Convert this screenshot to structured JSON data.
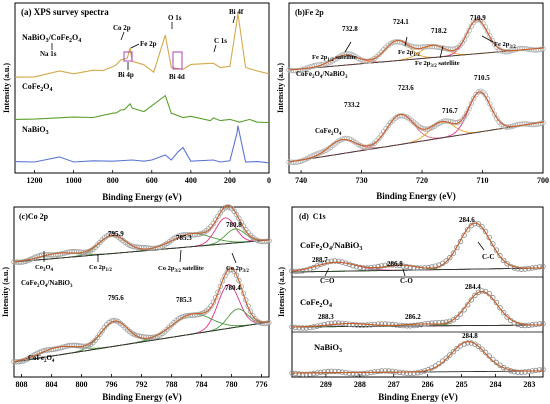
{
  "chart_data": [
    {
      "panel": "a",
      "type": "line",
      "title": "(a) XPS survey spectra",
      "xlabel": "Binding Energy (eV)",
      "ylabel": "Intensity (a.u.)",
      "xlim": [
        1300,
        0
      ],
      "x_reversed": true,
      "xticks": [
        1200,
        1000,
        800,
        600,
        400,
        200,
        0
      ],
      "series": [
        {
          "name": "NaBiO3/CoFe2O4",
          "color": "#d4a94a",
          "x": [
            1300,
            1200,
            1072,
            1000,
            900,
            850,
            795,
            780,
            760,
            725,
            711,
            700,
            640,
            590,
            531,
            500,
            440,
            400,
            285,
            250,
            200,
            164,
            159,
            120,
            60,
            0
          ],
          "y": [
            59,
            60,
            63,
            62,
            63.5,
            64,
            66,
            68,
            70,
            72,
            78,
            70,
            67,
            63,
            86,
            66,
            64,
            68,
            68,
            66,
            66,
            96,
            100,
            66,
            63,
            62
          ]
        },
        {
          "name": "CoFe2O4",
          "color": "#5aa02c",
          "x": [
            1300,
            1200,
            1000,
            900,
            800,
            780,
            760,
            740,
            711,
            700,
            640,
            531,
            500,
            440,
            400,
            300,
            285,
            250,
            200,
            150,
            100,
            60,
            0
          ],
          "y": [
            32,
            33,
            33.5,
            34,
            36,
            37,
            38,
            39,
            42,
            40,
            37,
            48,
            36,
            34,
            34,
            32,
            33,
            32,
            32,
            31,
            32,
            31,
            30
          ]
        },
        {
          "name": "NaBiO3",
          "color": "#5b76d4",
          "x": [
            1300,
            1200,
            1072,
            1000,
            900,
            800,
            700,
            640,
            600,
            531,
            500,
            466,
            440,
            400,
            285,
            250,
            200,
            164,
            159,
            120,
            60,
            0
          ],
          "y": [
            5,
            5.5,
            8,
            5.5,
            5.5,
            6,
            6,
            6,
            6,
            10,
            6,
            12,
            14,
            6,
            6,
            5.5,
            5.5,
            24,
            28,
            5.5,
            5,
            5
          ]
        }
      ],
      "annotations": [
        "Na 1s",
        "Co 2p",
        "Fe 2p",
        "O 1s",
        "Bi 4f",
        "C 1s",
        "Bi 4p",
        "Bi 4d"
      ],
      "ylim": [
        0,
        105
      ]
    },
    {
      "panel": "b",
      "type": "line",
      "title": "(b)Fe 2p",
      "xlabel": "Binding Energy (eV)",
      "ylabel": "Intensity (a.u.)",
      "xlim": [
        742,
        700
      ],
      "x_reversed": true,
      "xticks": [
        740,
        730,
        720,
        710,
        700
      ],
      "samples": [
        {
          "name": "CoFe2O4/NaBiO3",
          "peaks": [
            732.8,
            724.1,
            718.2,
            710.9
          ],
          "peak_labels": [
            "732.8",
            "724.1",
            "718.2",
            "710.9"
          ],
          "annotations": [
            "Fe 2p1/2 satellite",
            "Fe 2p1/2",
            "Fe 2p3/2 satellite",
            "Fe 2p3/2"
          ]
        },
        {
          "name": "CoFe2O4",
          "peaks": [
            733.2,
            723.6,
            716.7,
            710.5
          ],
          "peak_labels": [
            "733.2",
            "723.6",
            "716.7",
            "710.5"
          ]
        }
      ],
      "colors": {
        "data": "#b0b0b0",
        "envelope": "#c8602a",
        "peak1": "#e0338a",
        "peak2": "#f0a020",
        "peak3": "#e07080",
        "background": "#404040"
      }
    },
    {
      "panel": "c",
      "type": "line",
      "title": "(c)Co 2p",
      "xlabel": "Binding Energy (eV)",
      "ylabel": "Intensity (a.u.)",
      "xlim": [
        809,
        775
      ],
      "x_reversed": true,
      "xticks": [
        808,
        804,
        800,
        796,
        792,
        788,
        784,
        780,
        776
      ],
      "samples": [
        {
          "name": "CoFe2O4/NaBiO3",
          "peaks": [
            795.9,
            785.3,
            780.8
          ],
          "peak_labels": [
            "795.9",
            "785.3",
            "780.8"
          ],
          "annotations": [
            "Co3O4",
            "Co 2p1/2",
            "Co 2p3/2 satellite",
            "Co 2p3/2"
          ]
        },
        {
          "name": "CoFe2O4",
          "peaks": [
            795.6,
            785.3,
            780.4
          ],
          "peak_labels": [
            "795.6",
            "785.3",
            "780.4"
          ]
        }
      ],
      "colors": {
        "data": "#a0a0a0",
        "envelope": "#c8602a",
        "peak1": "#e0338a",
        "peak2": "#4a9a3a",
        "background": "#303030"
      }
    },
    {
      "panel": "d",
      "type": "line",
      "title": "(d)  C1s",
      "xlabel": "Binding Energy (eV)",
      "ylabel": "Intensity (a.u.)",
      "xlim": [
        290,
        282.6
      ],
      "x_reversed": true,
      "xticks": [
        289,
        288,
        287,
        286,
        285,
        284,
        283
      ],
      "samples": [
        {
          "name": "CoFe2O4/NaBiO3",
          "peaks": [
            288.7,
            286.8,
            284.6
          ],
          "peak_labels": [
            "288.7",
            "286.8",
            "284.6"
          ],
          "annotations": [
            "C=O",
            "C-O",
            "C-C"
          ]
        },
        {
          "name": "CoFe2O4",
          "peaks": [
            288.3,
            286.2,
            284.4
          ],
          "peak_labels": [
            "288.3",
            "286.2",
            "284.4"
          ]
        },
        {
          "name": "NaBiO3",
          "peaks": [
            284.8
          ],
          "peak_labels": [
            "284.8"
          ]
        }
      ],
      "colors": {
        "data": "#888888",
        "envelope": "#c8602a",
        "peak1": "#e0338a",
        "peak2": "#4a9a3a",
        "background": "#303030"
      }
    }
  ],
  "labels": {
    "a": {
      "title": "(a) XPS survey spectra",
      "na1s": "Na 1s",
      "co2p": "Co 2p",
      "fe2p": "Fe 2p",
      "o1s": "O 1s",
      "bi4f": "Bi 4f",
      "c1s": "C 1s",
      "bi4p": "Bi 4p",
      "bi4d": "Bi 4d",
      "ticks": [
        "1200",
        "1000",
        "800",
        "600",
        "400",
        "200",
        "0"
      ],
      "ylabel": "Intensity (a.u.)",
      "xlabel": "Binding Energy (eV)"
    },
    "b": {
      "title": "(b)Fe 2p",
      "p1": "732.8",
      "p2": "724.1",
      "p3": "718.2",
      "p4": "710.9",
      "q1": "733.2",
      "q2": "723.6",
      "q3": "716.7",
      "q4": "710.5",
      "ticks": [
        "740",
        "730",
        "720",
        "710",
        "700"
      ],
      "ylabel": "Intensity (a.u.)",
      "xlabel": "Binding Energy (eV)"
    },
    "c": {
      "title": "(c)Co 2p",
      "p1": "795.9",
      "p2": "785.3",
      "p3": "780.8",
      "q1": "795.6",
      "q2": "785.3",
      "q3": "780.4",
      "ticks": [
        "808",
        "804",
        "800",
        "796",
        "792",
        "788",
        "784",
        "780",
        "776"
      ],
      "ylabel": "Intensity (a.u.)",
      "xlabel": "Binding Energy (eV)"
    },
    "d": {
      "title": "(d)  C1s",
      "p1": "288.7",
      "p2": "286.8",
      "p3": "284.6",
      "q1": "288.3",
      "q2": "286.2",
      "q3": "284.4",
      "r1": "284.8",
      "co": "C=O",
      "c_o": "C-O",
      "cc": "C-C",
      "ticks": [
        "289",
        "288",
        "287",
        "286",
        "285",
        "284",
        "283"
      ],
      "ylabel": "Intensity (a.u.)",
      "xlabel": "Binding Energy (eV)"
    }
  }
}
